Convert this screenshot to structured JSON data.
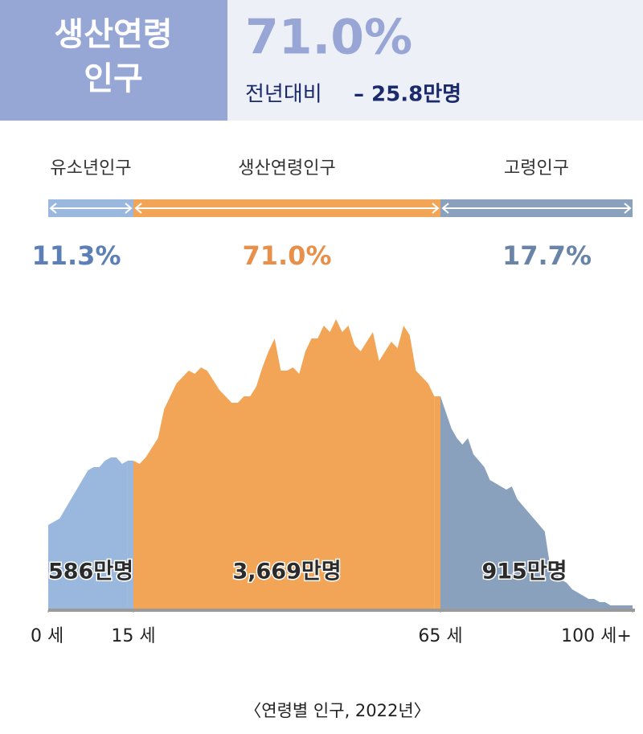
{
  "header": {
    "title_lines": [
      "생산연령",
      "인구"
    ],
    "value": "71.0%",
    "change_label": "전년대비",
    "change": "– 25.8만명"
  },
  "chart_data": {
    "type": "area",
    "caption": "〈연령별 인구, 2022년〉",
    "xlim": [
      0,
      100
    ],
    "xticks": [
      {
        "value": 0,
        "label": "0 세"
      },
      {
        "value": 15,
        "label": "15 세"
      },
      {
        "value": 65,
        "label": "65 세"
      },
      {
        "value": 100,
        "label": "100 세+"
      }
    ],
    "series": [
      {
        "name": "유소년인구",
        "color": "#9ab7de",
        "share": 11.3,
        "share_label": "11.3%",
        "share_color": "#5b7fb6",
        "total": 586,
        "total_label": "586만명",
        "x": [
          0,
          1,
          2,
          3,
          4,
          5,
          6,
          7,
          8,
          9,
          10,
          11,
          12,
          13,
          14
        ],
        "values": [
          26,
          27,
          28,
          31,
          34,
          37,
          40,
          43,
          44,
          44,
          46,
          47,
          47,
          45,
          46
        ]
      },
      {
        "name": "생산연령인구",
        "color": "#f2a556",
        "share": 71.0,
        "share_label": "71.0%",
        "share_color": "#e8904a",
        "total": 3669,
        "total_label": "3,669만명",
        "x": [
          15,
          16,
          17,
          18,
          19,
          20,
          21,
          22,
          23,
          24,
          25,
          26,
          27,
          28,
          29,
          30,
          31,
          32,
          33,
          34,
          35,
          36,
          37,
          38,
          39,
          40,
          41,
          42,
          43,
          44,
          45,
          46,
          47,
          48,
          49,
          50,
          51,
          52,
          53,
          54,
          55,
          56,
          57,
          58,
          59,
          60,
          61,
          62,
          63,
          64
        ],
        "values": [
          46,
          45,
          47,
          50,
          53,
          62,
          66,
          70,
          72,
          74,
          73,
          75,
          74,
          71,
          68,
          66,
          64,
          64,
          66,
          66,
          69,
          75,
          80,
          84,
          74,
          74,
          75,
          73,
          80,
          84,
          84,
          88,
          86,
          90,
          86,
          88,
          82,
          80,
          83,
          86,
          77,
          80,
          83,
          81,
          88,
          85,
          74,
          72,
          70,
          66
        ]
      },
      {
        "name": "고령인구",
        "color": "#8aa1be",
        "share": 17.7,
        "share_label": "17.7%",
        "share_color": "#6a84a8",
        "total": 915,
        "total_label": "915만명",
        "x": [
          65,
          66,
          67,
          68,
          69,
          70,
          71,
          72,
          73,
          74,
          75,
          76,
          77,
          78,
          79,
          80,
          81,
          82,
          83,
          84,
          85,
          86,
          87,
          88,
          89,
          90,
          91,
          92,
          93,
          94,
          95,
          96,
          97,
          98,
          99,
          100
        ],
        "values": [
          66,
          61,
          56,
          53,
          51,
          53,
          48,
          46,
          44,
          40,
          39,
          38,
          37,
          38,
          34,
          32,
          30,
          28,
          26,
          24,
          13,
          11,
          9,
          8,
          6,
          5,
          4,
          3,
          3,
          2,
          2,
          1,
          1,
          1,
          1,
          1
        ]
      }
    ]
  }
}
